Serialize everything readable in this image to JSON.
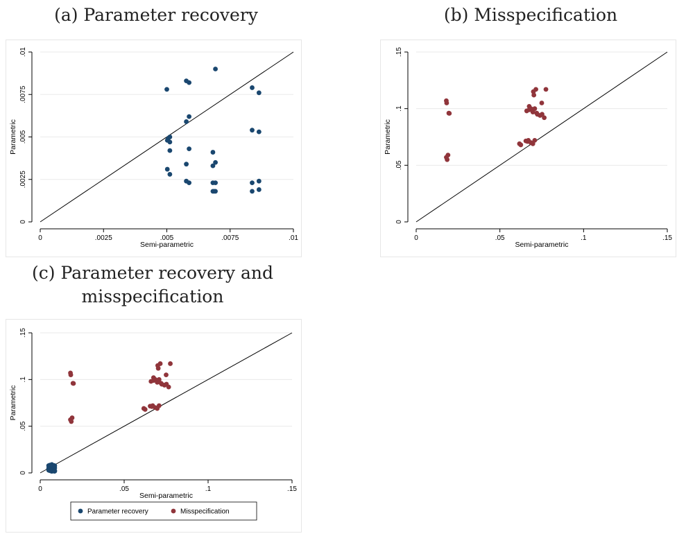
{
  "captions": {
    "a": "(a) Parameter recovery",
    "b": "(b) Misspecification",
    "c_line1": "(c) Parameter recovery and",
    "c_line2": "misspecification"
  },
  "chart_data": [
    {
      "id": "a",
      "type": "scatter",
      "xlabel": "Semi-parametric",
      "ylabel": "Parametric",
      "xlim": [
        0,
        0.01
      ],
      "ylim": [
        0,
        0.01
      ],
      "xticks": [
        0,
        0.0025,
        0.005,
        0.0075,
        0.01
      ],
      "xtick_labels": [
        "0",
        ".0025",
        ".005",
        ".0075",
        ".01"
      ],
      "yticks": [
        0,
        0.0025,
        0.005,
        0.0075,
        0.01
      ],
      "ytick_labels": [
        "0",
        ".0025",
        ".005",
        ".0075",
        ".01"
      ],
      "grid": true,
      "reference_line": "45-degree",
      "series": [
        {
          "color": "#1a476f",
          "x": [
            0.005,
            0.00505,
            0.00512,
            0.00512,
            0.00502,
            0.00512,
            0.00502,
            0.00512,
            0.00577,
            0.00588,
            0.00577,
            0.00588,
            0.00588,
            0.00577,
            0.00577,
            0.00588,
            0.00692,
            0.00682,
            0.00692,
            0.00682,
            0.00682,
            0.00692,
            0.00687,
            0.00682,
            0.00692,
            0.00837,
            0.00864,
            0.00837,
            0.00864,
            0.00837,
            0.00864,
            0.00837,
            0.00864
          ],
          "y": [
            0.0078,
            0.0049,
            0.005,
            0.0047,
            0.0048,
            0.0042,
            0.0031,
            0.0028,
            0.0083,
            0.0082,
            0.0059,
            0.0062,
            0.0043,
            0.0034,
            0.0024,
            0.0023,
            0.009,
            0.0041,
            0.0035,
            0.0033,
            0.0023,
            0.0023,
            0.0018,
            0.0018,
            0.0018,
            0.0079,
            0.0076,
            0.0054,
            0.0053,
            0.0023,
            0.0024,
            0.0018,
            0.0019
          ]
        }
      ]
    },
    {
      "id": "b",
      "type": "scatter",
      "xlabel": "Semi-parametric",
      "ylabel": "Parametric",
      "xlim": [
        0,
        0.15
      ],
      "ylim": [
        0,
        0.15
      ],
      "xticks": [
        0,
        0.05,
        0.1,
        0.15
      ],
      "xtick_labels": [
        "0",
        ".05",
        ".1",
        ".15"
      ],
      "yticks": [
        0,
        0.05,
        0.1,
        0.15
      ],
      "ytick_labels": [
        "0",
        ".05",
        ".1",
        ".15"
      ],
      "grid": true,
      "reference_line": "45-degree",
      "series": [
        {
          "color": "#90353b",
          "x": [
            0.018,
            0.0182,
            0.0195,
            0.0198,
            0.019,
            0.018,
            0.0185,
            0.0617,
            0.0625,
            0.0655,
            0.067,
            0.0685,
            0.0697,
            0.0708,
            0.0703,
            0.0675,
            0.066,
            0.072,
            0.0724,
            0.074,
            0.075,
            0.0752,
            0.0775,
            0.0765,
            0.0685,
            0.0715,
            0.0665,
            0.0675,
            0.0697,
            0.07,
            0.0708
          ],
          "y": [
            0.107,
            0.105,
            0.096,
            0.0958,
            0.059,
            0.057,
            0.055,
            0.069,
            0.068,
            0.0715,
            0.072,
            0.07,
            0.069,
            0.072,
            0.112,
            0.102,
            0.098,
            0.096,
            0.095,
            0.094,
            0.105,
            0.095,
            0.117,
            0.092,
            0.1,
            0.117,
            0.071,
            0.099,
            0.097,
            0.115,
            0.1
          ]
        }
      ]
    },
    {
      "id": "c",
      "type": "scatter",
      "xlabel": "Semi-parametric",
      "ylabel": "Parametric",
      "xlim": [
        0,
        0.15
      ],
      "ylim": [
        0,
        0.15
      ],
      "xticks": [
        0,
        0.05,
        0.1,
        0.15
      ],
      "xtick_labels": [
        "0",
        ".05",
        ".1",
        ".15"
      ],
      "yticks": [
        0,
        0.05,
        0.1,
        0.15
      ],
      "ytick_labels": [
        "0",
        ".05",
        ".1",
        ".15"
      ],
      "grid": true,
      "reference_line": "45-degree",
      "legend": {
        "placement": "bottom"
      },
      "series": [
        {
          "name": "Parameter recovery",
          "color": "#1a476f",
          "x": [
            0.005,
            0.00505,
            0.00512,
            0.00512,
            0.00502,
            0.00512,
            0.00502,
            0.00512,
            0.00577,
            0.00588,
            0.00577,
            0.00588,
            0.00588,
            0.00577,
            0.00577,
            0.00588,
            0.00692,
            0.00682,
            0.00692,
            0.00682,
            0.00682,
            0.00692,
            0.00687,
            0.00682,
            0.00692,
            0.00837,
            0.00864,
            0.00837,
            0.00864,
            0.00837,
            0.00864,
            0.00837,
            0.00864
          ],
          "y": [
            0.0078,
            0.0049,
            0.005,
            0.0047,
            0.0048,
            0.0042,
            0.0031,
            0.0028,
            0.0083,
            0.0082,
            0.0059,
            0.0062,
            0.0043,
            0.0034,
            0.0024,
            0.0023,
            0.009,
            0.0041,
            0.0035,
            0.0033,
            0.0023,
            0.0023,
            0.0018,
            0.0018,
            0.0018,
            0.0079,
            0.0076,
            0.0054,
            0.0053,
            0.0023,
            0.0024,
            0.0018,
            0.0019
          ]
        },
        {
          "name": "Misspecification",
          "color": "#90353b",
          "x": [
            0.018,
            0.0182,
            0.0195,
            0.0198,
            0.019,
            0.018,
            0.0185,
            0.0617,
            0.0625,
            0.0655,
            0.067,
            0.0685,
            0.0697,
            0.0708,
            0.0703,
            0.0675,
            0.066,
            0.072,
            0.0724,
            0.074,
            0.075,
            0.0752,
            0.0775,
            0.0765,
            0.0685,
            0.0715,
            0.0665,
            0.0675,
            0.0697,
            0.07,
            0.0708
          ],
          "y": [
            0.107,
            0.105,
            0.096,
            0.0958,
            0.059,
            0.057,
            0.055,
            0.069,
            0.068,
            0.0715,
            0.072,
            0.07,
            0.069,
            0.072,
            0.112,
            0.102,
            0.098,
            0.096,
            0.095,
            0.094,
            0.105,
            0.095,
            0.117,
            0.092,
            0.1,
            0.117,
            0.071,
            0.099,
            0.097,
            0.115,
            0.1
          ]
        }
      ]
    }
  ]
}
